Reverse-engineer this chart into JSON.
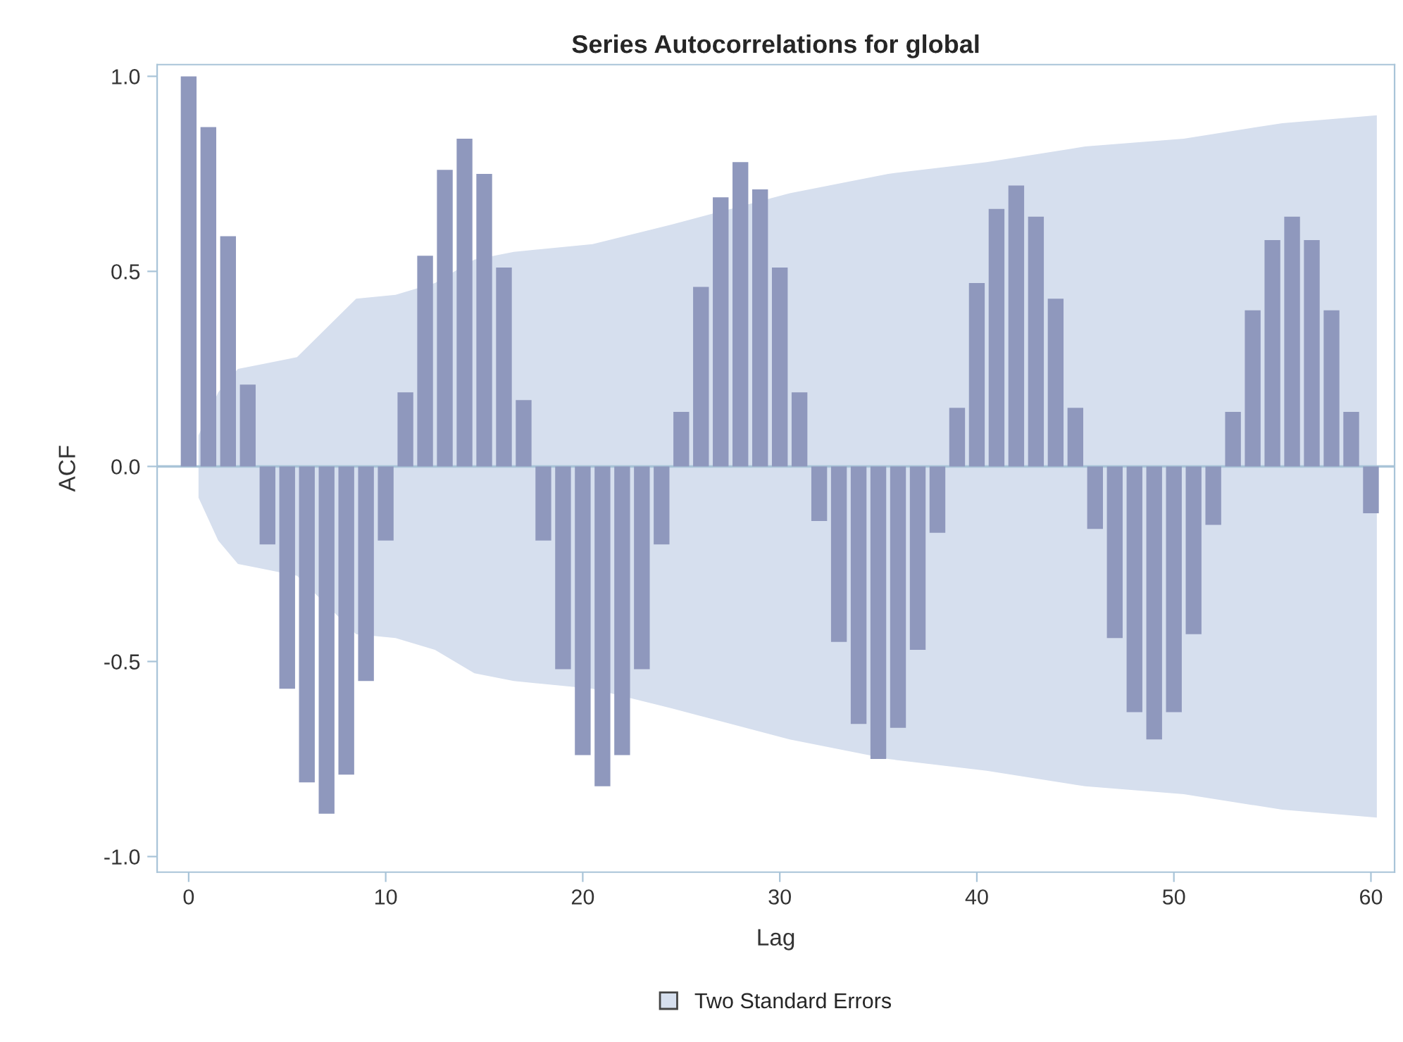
{
  "chart_data": {
    "type": "bar",
    "title": "Series Autocorrelations for global",
    "xlabel": "Lag",
    "ylabel": "ACF",
    "x": [
      0,
      1,
      2,
      3,
      4,
      5,
      6,
      7,
      8,
      9,
      10,
      11,
      12,
      13,
      14,
      15,
      16,
      17,
      18,
      19,
      20,
      21,
      22,
      23,
      24,
      25,
      26,
      27,
      28,
      29,
      30,
      31,
      32,
      33,
      34,
      35,
      36,
      37,
      38,
      39,
      40,
      41,
      42,
      43,
      44,
      45,
      46,
      47,
      48,
      49,
      50,
      51,
      52,
      53,
      54,
      55,
      56,
      57,
      58,
      59,
      60
    ],
    "series": [
      {
        "color": "#d6dfee",
        "type": "area",
        "name": "Two Standard Errors",
        "x": [
          0.5,
          1.5,
          2.5,
          3.5,
          5.5,
          8.5,
          10.5,
          12.5,
          14.5,
          16.5,
          20.5,
          24.5,
          30.5,
          35.5,
          40.5,
          45.5,
          50.5,
          55.5,
          60.3
        ],
        "values": [
          0.08,
          0.19,
          0.25,
          0.26,
          0.28,
          0.43,
          0.44,
          0.47,
          0.53,
          0.55,
          0.57,
          0.62,
          0.7,
          0.75,
          0.78,
          0.82,
          0.84,
          0.88,
          0.9
        ]
      },
      {
        "color": "#d6dfee",
        "type": "area",
        "x": [
          0.5,
          1.5,
          2.5,
          3.5,
          5.5,
          8.5,
          10.5,
          12.5,
          14.5,
          16.5,
          20.5,
          24.5,
          30.5,
          35.5,
          40.5,
          45.5,
          50.5,
          55.5,
          60.3
        ],
        "values": [
          -0.08,
          -0.19,
          -0.25,
          -0.26,
          -0.28,
          -0.43,
          -0.44,
          -0.47,
          -0.53,
          -0.55,
          -0.57,
          -0.62,
          -0.7,
          -0.75,
          -0.78,
          -0.82,
          -0.84,
          -0.88,
          -0.9
        ]
      },
      {
        "color": "#8f98bd",
        "values": [
          1.0,
          0.87,
          0.59,
          0.21,
          -0.2,
          -0.57,
          -0.81,
          -0.89,
          -0.79,
          -0.55,
          -0.19,
          0.19,
          0.54,
          0.76,
          0.84,
          0.75,
          0.51,
          0.17,
          -0.19,
          -0.52,
          -0.74,
          -0.82,
          -0.74,
          -0.52,
          -0.2,
          0.14,
          0.46,
          0.69,
          0.78,
          0.71,
          0.51,
          0.19,
          -0.14,
          -0.45,
          -0.66,
          -0.75,
          -0.67,
          -0.47,
          -0.17,
          0.15,
          0.47,
          0.66,
          0.72,
          0.64,
          0.43,
          0.15,
          -0.16,
          -0.44,
          -0.63,
          -0.7,
          -0.63,
          -0.43,
          -0.15,
          0.14,
          0.4,
          0.58,
          0.64,
          0.58,
          0.4,
          0.14,
          -0.12
        ]
      }
    ],
    "xlim": [
      -1.6,
      61.2
    ],
    "xticks": [
      0,
      10,
      20,
      30,
      40,
      50,
      60
    ],
    "ylim": [
      -1.04,
      1.03
    ],
    "yticks": [
      {
        "value": -1,
        "label": "-1.0"
      },
      {
        "value": -0.5,
        "label": "-0.5"
      },
      {
        "value": 0,
        "label": "0.0"
      },
      {
        "value": 0.5,
        "label": "0.5"
      },
      {
        "value": 1,
        "label": "1.0"
      }
    ],
    "ref_lines": [
      {
        "axis": "y",
        "value": 0,
        "color": "#a9c4d8"
      }
    ],
    "grid": false,
    "legend": "bottom"
  }
}
